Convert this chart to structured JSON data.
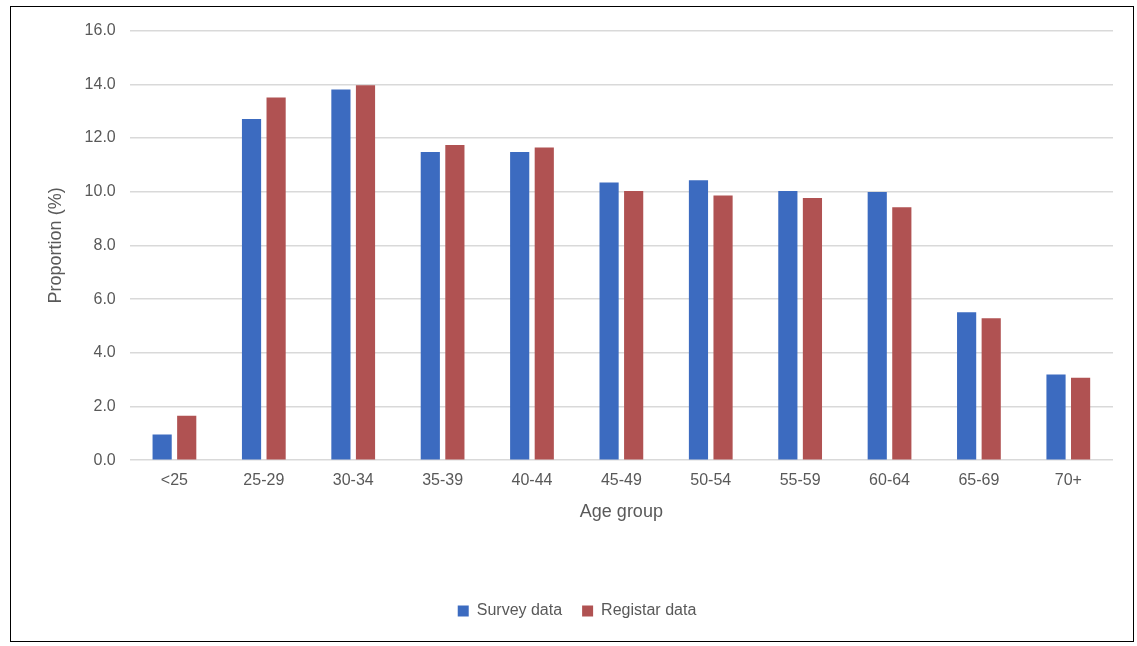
{
  "chart_data": {
    "type": "bar",
    "xlabel": "Age group",
    "ylabel": "Proportion (%)",
    "categories": [
      "<25",
      "25-29",
      "30-34",
      "35-39",
      "40-44",
      "45-49",
      "50-54",
      "55-59",
      "60-64",
      "65-69",
      "70+"
    ],
    "series": [
      {
        "name": "Survey data",
        "color": "#3c6bc0",
        "values": [
          0.96,
          12.71,
          13.81,
          11.48,
          11.48,
          10.34,
          10.43,
          10.03,
          9.99,
          5.51,
          3.19
        ]
      },
      {
        "name": "Registar data",
        "color": "#b05252",
        "values": [
          1.66,
          13.51,
          13.96,
          11.74,
          11.65,
          10.03,
          9.86,
          9.77,
          9.42,
          5.29,
          3.07
        ]
      }
    ],
    "ylim": [
      0,
      16
    ],
    "yticks": [
      {
        "value": 0,
        "label": "0.0"
      },
      {
        "value": 2,
        "label": "2.0"
      },
      {
        "value": 4,
        "label": "4.0"
      },
      {
        "value": 6,
        "label": "6.0"
      },
      {
        "value": 8,
        "label": "8.0"
      },
      {
        "value": 10,
        "label": "10.0"
      },
      {
        "value": 12,
        "label": "12.0"
      },
      {
        "value": 14,
        "label": "14.0"
      },
      {
        "value": 16,
        "label": "16.0"
      }
    ],
    "grid": "y",
    "legend": "bottom"
  }
}
